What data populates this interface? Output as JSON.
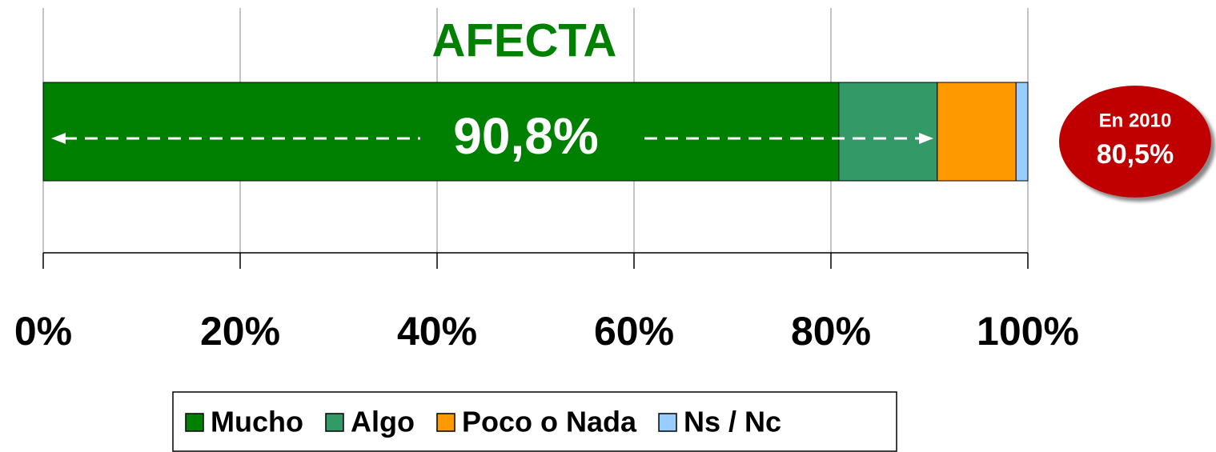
{
  "chart_data": {
    "type": "stacked_barh",
    "title": "AFECTA",
    "categories": [
      null
    ],
    "series": [
      {
        "name": "Mucho",
        "color": "#008000",
        "values": [
          80.8
        ]
      },
      {
        "name": "Algo",
        "color": "#339966",
        "values": [
          10.0
        ]
      },
      {
        "name": "Poco o Nada",
        "color": "#ff9900",
        "values": [
          8.0
        ]
      },
      {
        "name": "Ns / Nc",
        "color": "#99ccff",
        "values": [
          1.2
        ]
      }
    ],
    "xlim": [
      0,
      100
    ],
    "xticks": [
      {
        "value": 0,
        "label": "0%"
      },
      {
        "value": 20,
        "label": "20%"
      },
      {
        "value": 40,
        "label": "40%"
      },
      {
        "value": 60,
        "label": "60%"
      },
      {
        "value": 80,
        "label": "80%"
      },
      {
        "value": 100,
        "label": "100%"
      }
    ],
    "grid": true,
    "legend": "bottom",
    "annotations": [
      "90,8%",
      "En 2010",
      "80,5%"
    ]
  }
}
